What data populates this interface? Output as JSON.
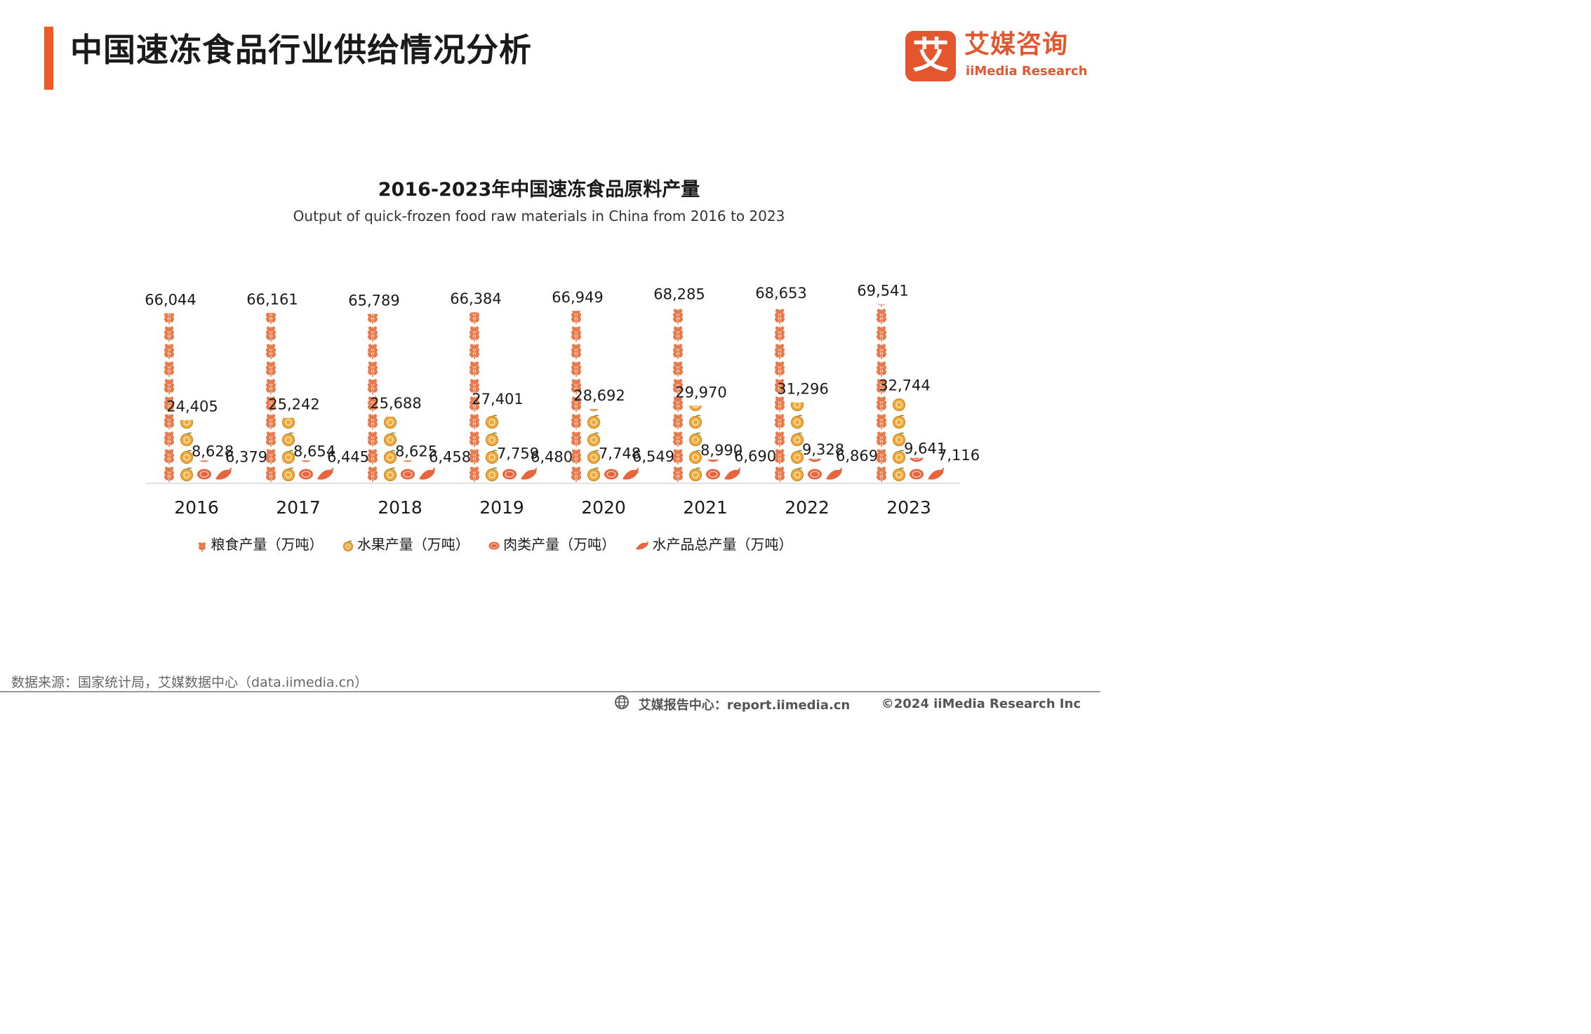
{
  "header": {
    "title": "中国速冻食品行业供给情况分析",
    "logo_mark": "艾",
    "logo_cn": "艾媒咨询",
    "logo_en": "iiMedia Research"
  },
  "colors": {
    "accent": "#f05a28",
    "grain": "#e8794a",
    "fruit": "#f2a93b",
    "meat": "#e8643c",
    "aquatic": "#e8643c"
  },
  "chart_data": {
    "type": "bar",
    "title": "2016-2023年中国速冻食品原料产量",
    "subtitle": "Output of quick-frozen food raw materials in China from 2016 to 2023",
    "categories": [
      "2016",
      "2017",
      "2018",
      "2019",
      "2020",
      "2021",
      "2022",
      "2023"
    ],
    "series": [
      {
        "name": "粮食产量（万吨）",
        "icon": "wheat-icon",
        "values": [
          66044,
          66161,
          65789,
          66384,
          66949,
          68285,
          68653,
          69541
        ],
        "labels": [
          "66,044",
          "66,161",
          "65,789",
          "66,384",
          "66,949",
          "68,285",
          "68,653",
          "69,541"
        ]
      },
      {
        "name": "水果产量（万吨）",
        "icon": "orange-fruit-icon",
        "values": [
          24405,
          25242,
          25688,
          27401,
          28692,
          29970,
          31296,
          32744
        ],
        "labels": [
          "24,405",
          "25,242",
          "25,688",
          "27,401",
          "28,692",
          "29,970",
          "31,296",
          "32,744"
        ]
      },
      {
        "name": "肉类产量（万吨）",
        "icon": "meat-icon",
        "values": [
          8628,
          8654,
          8625,
          7759,
          7748,
          8990,
          9328,
          9641
        ],
        "labels": [
          "8,628",
          "8,654",
          "8,625",
          "7,759",
          "7,748",
          "8,990",
          "9,328",
          "9,641"
        ]
      },
      {
        "name": "水产品总产量（万吨）",
        "icon": "fish-icon",
        "values": [
          6379,
          6445,
          6458,
          6480,
          6549,
          6690,
          6869,
          7116
        ],
        "labels": [
          "6,379",
          "6,445",
          "6,458",
          "6,480",
          "6,549",
          "6,690",
          "6,869",
          "7,116"
        ]
      }
    ],
    "ylim": [
      0,
      70000
    ],
    "grid": false,
    "legend_position": "bottom"
  },
  "source": "数据来源：国家统计局，艾媒数据中心（data.iimedia.cn）",
  "footer": {
    "center_label": "艾媒报告中心：report.iimedia.cn",
    "copyright": "©2024  iiMedia Research  Inc"
  }
}
